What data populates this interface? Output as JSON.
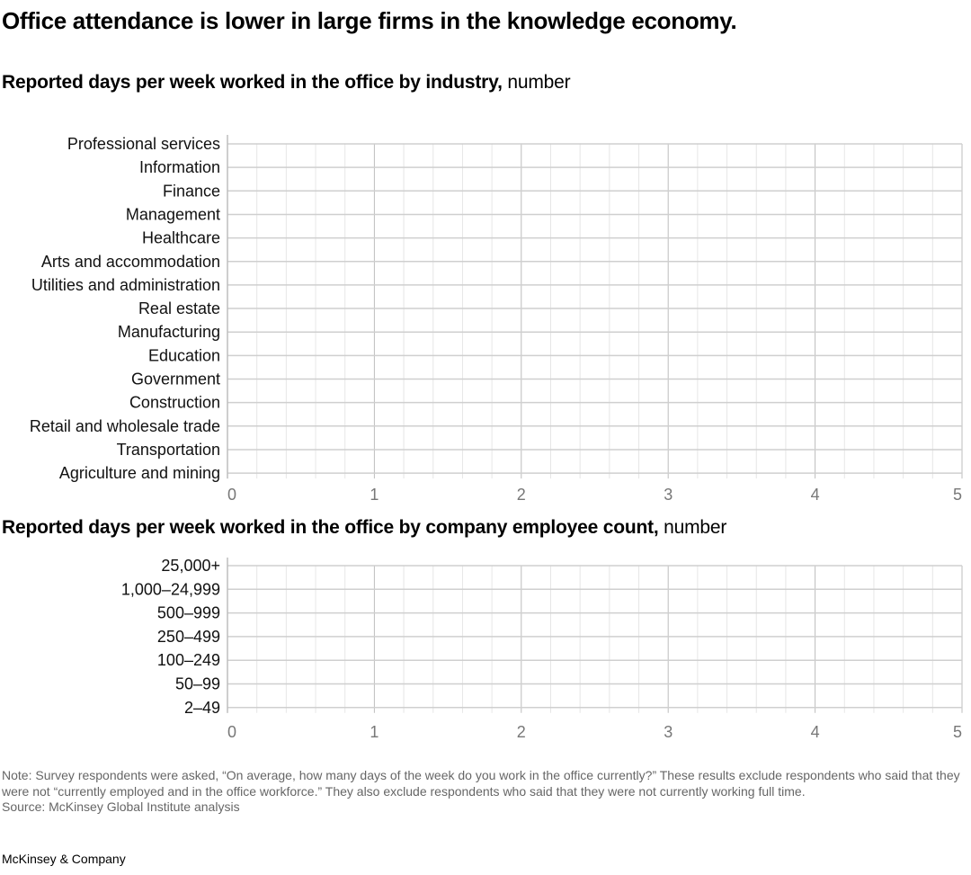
{
  "title": "Office attendance is lower in large firms in the knowledge economy.",
  "chart_data": [
    {
      "type": "bar",
      "title": "Reported days per week worked in the office by industry,",
      "unit": "number",
      "categories": [
        "Professional services",
        "Information",
        "Finance",
        "Management",
        "Healthcare",
        "Arts and accommodation",
        "Utilities and administration",
        "Real estate",
        "Manufacturing",
        "Education",
        "Government",
        "Construction",
        "Retail and wholesale trade",
        "Transportation",
        "Agriculture and mining"
      ],
      "xlim": [
        0,
        5
      ],
      "xticks": [
        "0",
        "1",
        "2",
        "3",
        "4",
        "5"
      ],
      "grid": true
    },
    {
      "type": "bar",
      "title": "Reported days per week worked in the office by company employee count,",
      "unit": "number",
      "categories": [
        "25,000+",
        "1,000–24,999",
        "500–999",
        "250–499",
        "100–249",
        "50–99",
        "2–49"
      ],
      "xlim": [
        0,
        5
      ],
      "xticks": [
        "0",
        "1",
        "2",
        "3",
        "4",
        "5"
      ],
      "grid": true
    }
  ],
  "note": "Note: Survey respondents were asked, “On average, how many days of the week do you work in the office currently?” These results exclude respondents who said that they were not “currently employed and in the office workforce.” They also exclude respondents who said that they were not currently working full time.",
  "source": "Source: McKinsey Global Institute analysis",
  "brand": "McKinsey & Company"
}
